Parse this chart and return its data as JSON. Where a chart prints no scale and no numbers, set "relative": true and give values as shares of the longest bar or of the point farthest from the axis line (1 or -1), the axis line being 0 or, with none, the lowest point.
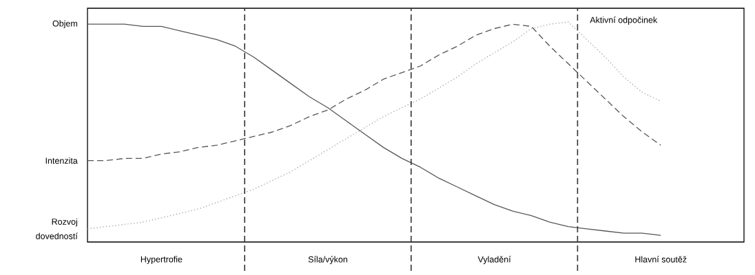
{
  "chart_data": {
    "type": "line",
    "relative": true,
    "categories": [
      null,
      null,
      null,
      null,
      "Hypertrofie",
      null,
      null,
      null,
      null,
      null,
      null,
      null,
      null,
      "Síla/výkon",
      null,
      null,
      null,
      null,
      null,
      null,
      null,
      null,
      "Vyladění",
      null,
      null,
      null,
      null,
      null,
      null,
      null,
      null,
      "Hlavní soutěž",
      null,
      null,
      null,
      null
    ],
    "series": [
      {
        "name": "Objem",
        "color": "#555555",
        "line_style": "solid",
        "values": [
          0.99,
          0.99,
          0.99,
          0.98,
          0.98,
          0.96,
          0.94,
          0.92,
          0.89,
          0.84,
          0.78,
          0.72,
          0.66,
          0.61,
          0.55,
          0.49,
          0.43,
          0.38,
          0.34,
          0.29,
          0.25,
          0.21,
          0.17,
          0.14,
          0.12,
          0.09,
          0.07,
          0.06,
          0.05,
          0.04,
          0.04,
          0.03,
          null,
          null,
          null,
          null
        ]
      },
      {
        "name": "Intenzita",
        "color": "#555555",
        "line_style": "dashed",
        "values": [
          0.37,
          0.37,
          0.38,
          0.38,
          0.4,
          0.41,
          0.43,
          0.44,
          0.46,
          0.48,
          0.5,
          0.53,
          0.57,
          0.6,
          0.65,
          0.69,
          0.74,
          0.77,
          0.8,
          0.85,
          0.89,
          0.94,
          0.97,
          0.99,
          0.98,
          0.89,
          0.81,
          0.73,
          0.65,
          0.57,
          0.5,
          0.44,
          null,
          null,
          null,
          null
        ]
      },
      {
        "name": "Rozvoj dovedností",
        "color": "#aaaaaa",
        "line_style": "dotted",
        "values": [
          0.06,
          0.07,
          0.08,
          0.09,
          0.11,
          0.13,
          0.15,
          0.18,
          0.21,
          0.24,
          0.28,
          0.32,
          0.37,
          0.42,
          0.47,
          0.52,
          0.57,
          0.61,
          0.65,
          0.7,
          0.75,
          0.81,
          0.86,
          0.91,
          0.97,
          0.99,
          1.0,
          0.92,
          0.84,
          0.75,
          0.68,
          0.64,
          null,
          null,
          null,
          null
        ]
      }
    ],
    "annotations": [
      "Aktivní odpočinek"
    ]
  }
}
